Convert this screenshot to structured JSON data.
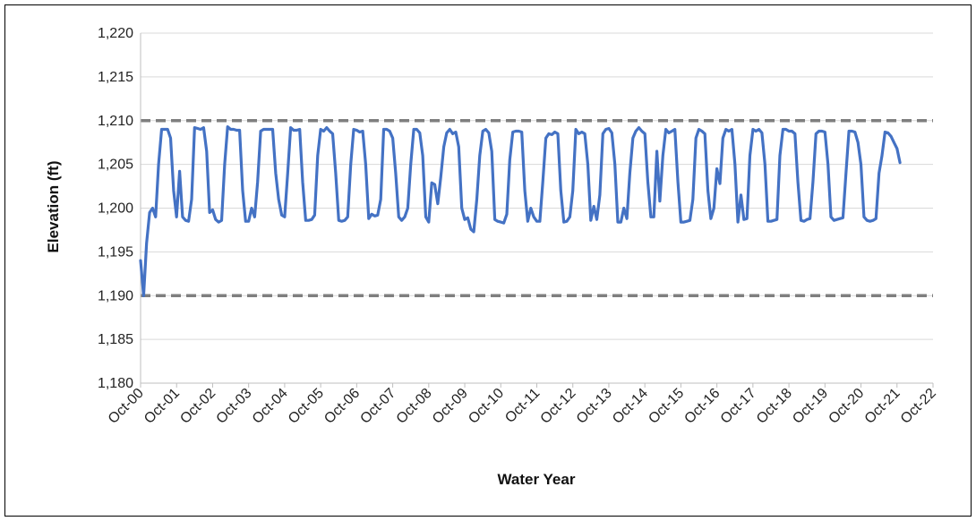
{
  "chart_data": {
    "type": "line",
    "title": "",
    "xlabel": "Water Year",
    "ylabel": "Elevation (ft)",
    "ylim": [
      1180,
      1220
    ],
    "xlim": [
      "2000-10",
      "2022-10"
    ],
    "yticks": [
      1180,
      1185,
      1190,
      1195,
      1200,
      1205,
      1210,
      1215,
      1220
    ],
    "ytick_labels": [
      "1,180",
      "1,185",
      "1,190",
      "1,195",
      "1,200",
      "1,205",
      "1,210",
      "1,215",
      "1,220"
    ],
    "xtick_labels": [
      "Oct-00",
      "Oct-01",
      "Oct-02",
      "Oct-03",
      "Oct-04",
      "Oct-05",
      "Oct-06",
      "Oct-07",
      "Oct-08",
      "Oct-09",
      "Oct-10",
      "Oct-11",
      "Oct-12",
      "Oct-13",
      "Oct-14",
      "Oct-15",
      "Oct-16",
      "Oct-17",
      "Oct-18",
      "Oct-19",
      "Oct-20",
      "Oct-21",
      "Oct-22"
    ],
    "grid": true,
    "legend": "none",
    "reference_lines": [
      {
        "y": 1210,
        "color": "#7f7f7f",
        "style": "dashed"
      },
      {
        "y": 1190,
        "color": "#7f7f7f",
        "style": "dashed"
      }
    ],
    "series": [
      {
        "color": "#4472c4",
        "points": [
          [
            "2000-10",
            1194.0
          ],
          [
            "2000-11",
            1190.0
          ],
          [
            "2000-12",
            1196.0
          ],
          [
            "2001-01",
            1199.5
          ],
          [
            "2001-02",
            1200.0
          ],
          [
            "2001-03",
            1199.0
          ],
          [
            "2001-04",
            1205.0
          ],
          [
            "2001-05",
            1209.0
          ],
          [
            "2001-06",
            1209.0
          ],
          [
            "2001-07",
            1209.0
          ],
          [
            "2001-08",
            1208.0
          ],
          [
            "2001-09",
            1202.0
          ],
          [
            "2001-10",
            1199.0
          ],
          [
            "2001-11",
            1204.2
          ],
          [
            "2001-12",
            1199.0
          ],
          [
            "2002-01",
            1198.6
          ],
          [
            "2002-02",
            1198.5
          ],
          [
            "2002-03",
            1201.0
          ],
          [
            "2002-04",
            1209.2
          ],
          [
            "2002-05",
            1209.1
          ],
          [
            "2002-06",
            1209.0
          ],
          [
            "2002-07",
            1209.2
          ],
          [
            "2002-08",
            1206.5
          ],
          [
            "2002-09",
            1199.5
          ],
          [
            "2002-10",
            1199.8
          ],
          [
            "2002-11",
            1198.7
          ],
          [
            "2002-12",
            1198.4
          ],
          [
            "2003-01",
            1198.6
          ],
          [
            "2003-02",
            1205.0
          ],
          [
            "2003-03",
            1209.3
          ],
          [
            "2003-04",
            1209.0
          ],
          [
            "2003-05",
            1209.0
          ],
          [
            "2003-06",
            1208.9
          ],
          [
            "2003-07",
            1208.9
          ],
          [
            "2003-08",
            1202.0
          ],
          [
            "2003-09",
            1198.5
          ],
          [
            "2003-10",
            1198.5
          ],
          [
            "2003-11",
            1200.0
          ],
          [
            "2003-12",
            1199.0
          ],
          [
            "2004-01",
            1203.0
          ],
          [
            "2004-02",
            1208.8
          ],
          [
            "2004-03",
            1209.0
          ],
          [
            "2004-04",
            1209.0
          ],
          [
            "2004-05",
            1209.0
          ],
          [
            "2004-06",
            1209.0
          ],
          [
            "2004-07",
            1204.0
          ],
          [
            "2004-08",
            1201.0
          ],
          [
            "2004-09",
            1199.2
          ],
          [
            "2004-10",
            1199.0
          ],
          [
            "2004-11",
            1204.0
          ],
          [
            "2004-12",
            1209.2
          ],
          [
            "2005-01",
            1208.9
          ],
          [
            "2005-02",
            1208.9
          ],
          [
            "2005-03",
            1209.0
          ],
          [
            "2005-04",
            1203.0
          ],
          [
            "2005-05",
            1198.6
          ],
          [
            "2005-06",
            1198.6
          ],
          [
            "2005-07",
            1198.7
          ],
          [
            "2005-08",
            1199.2
          ],
          [
            "2005-09",
            1206.0
          ],
          [
            "2005-10",
            1209.0
          ],
          [
            "2005-11",
            1208.8
          ],
          [
            "2005-12",
            1209.2
          ],
          [
            "2006-01",
            1208.8
          ],
          [
            "2006-02",
            1208.5
          ],
          [
            "2006-03",
            1204.0
          ],
          [
            "2006-04",
            1198.6
          ],
          [
            "2006-05",
            1198.5
          ],
          [
            "2006-06",
            1198.6
          ],
          [
            "2006-07",
            1199.0
          ],
          [
            "2006-08",
            1205.0
          ],
          [
            "2006-09",
            1209.0
          ],
          [
            "2006-10",
            1208.9
          ],
          [
            "2006-11",
            1208.7
          ],
          [
            "2006-12",
            1208.8
          ],
          [
            "2007-01",
            1205.0
          ],
          [
            "2007-02",
            1198.8
          ],
          [
            "2007-03",
            1199.3
          ],
          [
            "2007-04",
            1199.1
          ],
          [
            "2007-05",
            1199.2
          ],
          [
            "2007-06",
            1201.0
          ],
          [
            "2007-07",
            1209.0
          ],
          [
            "2007-08",
            1209.0
          ],
          [
            "2007-09",
            1208.8
          ],
          [
            "2007-10",
            1208.0
          ],
          [
            "2007-11",
            1204.0
          ],
          [
            "2007-12",
            1199.0
          ],
          [
            "2008-01",
            1198.6
          ],
          [
            "2008-02",
            1199.0
          ],
          [
            "2008-03",
            1200.0
          ],
          [
            "2008-04",
            1205.0
          ],
          [
            "2008-05",
            1209.0
          ],
          [
            "2008-06",
            1209.0
          ],
          [
            "2008-07",
            1208.6
          ],
          [
            "2008-08",
            1206.0
          ],
          [
            "2008-09",
            1199.0
          ],
          [
            "2008-10",
            1198.4
          ],
          [
            "2008-11",
            1202.9
          ],
          [
            "2008-12",
            1202.7
          ],
          [
            "2009-01",
            1200.5
          ],
          [
            "2009-02",
            1203.5
          ],
          [
            "2009-03",
            1207.0
          ],
          [
            "2009-04",
            1208.6
          ],
          [
            "2009-05",
            1209.0
          ],
          [
            "2009-06",
            1208.5
          ],
          [
            "2009-07",
            1208.7
          ],
          [
            "2009-08",
            1207.0
          ],
          [
            "2009-09",
            1200.0
          ],
          [
            "2009-10",
            1198.7
          ],
          [
            "2009-11",
            1198.9
          ],
          [
            "2009-12",
            1197.6
          ],
          [
            "2010-01",
            1197.3
          ],
          [
            "2010-02",
            1201.0
          ],
          [
            "2010-03",
            1206.0
          ],
          [
            "2010-04",
            1208.8
          ],
          [
            "2010-05",
            1209.0
          ],
          [
            "2010-06",
            1208.6
          ],
          [
            "2010-07",
            1206.5
          ],
          [
            "2010-08",
            1198.7
          ],
          [
            "2010-09",
            1198.5
          ],
          [
            "2010-10",
            1198.4
          ],
          [
            "2010-11",
            1198.3
          ],
          [
            "2010-12",
            1199.3
          ],
          [
            "2011-01",
            1205.5
          ],
          [
            "2011-02",
            1208.7
          ],
          [
            "2011-03",
            1208.8
          ],
          [
            "2011-04",
            1208.8
          ],
          [
            "2011-05",
            1208.7
          ],
          [
            "2011-06",
            1202.0
          ],
          [
            "2011-07",
            1198.5
          ],
          [
            "2011-08",
            1200.0
          ],
          [
            "2011-09",
            1199.0
          ],
          [
            "2011-10",
            1198.5
          ],
          [
            "2011-11",
            1198.5
          ],
          [
            "2011-12",
            1203.0
          ],
          [
            "2012-01",
            1208.0
          ],
          [
            "2012-02",
            1208.5
          ],
          [
            "2012-03",
            1208.4
          ],
          [
            "2012-04",
            1208.7
          ],
          [
            "2012-05",
            1208.5
          ],
          [
            "2012-06",
            1202.0
          ],
          [
            "2012-07",
            1198.4
          ],
          [
            "2012-08",
            1198.5
          ],
          [
            "2012-09",
            1199.0
          ],
          [
            "2012-10",
            1202.0
          ],
          [
            "2012-11",
            1209.0
          ],
          [
            "2012-12",
            1208.5
          ],
          [
            "2013-01",
            1208.7
          ],
          [
            "2013-02",
            1208.5
          ],
          [
            "2013-03",
            1205.0
          ],
          [
            "2013-04",
            1198.6
          ],
          [
            "2013-05",
            1200.2
          ],
          [
            "2013-06",
            1198.7
          ],
          [
            "2013-07",
            1201.5
          ],
          [
            "2013-08",
            1208.5
          ],
          [
            "2013-09",
            1209.0
          ],
          [
            "2013-10",
            1209.1
          ],
          [
            "2013-11",
            1208.6
          ],
          [
            "2013-12",
            1205.0
          ],
          [
            "2014-01",
            1198.4
          ],
          [
            "2014-02",
            1198.4
          ],
          [
            "2014-03",
            1200.0
          ],
          [
            "2014-04",
            1198.8
          ],
          [
            "2014-05",
            1204.0
          ],
          [
            "2014-06",
            1208.0
          ],
          [
            "2014-07",
            1208.8
          ],
          [
            "2014-08",
            1209.2
          ],
          [
            "2014-09",
            1208.8
          ],
          [
            "2014-10",
            1208.5
          ],
          [
            "2014-11",
            1203.0
          ],
          [
            "2014-12",
            1199.0
          ],
          [
            "2015-01",
            1199.0
          ],
          [
            "2015-02",
            1206.5
          ],
          [
            "2015-03",
            1200.8
          ],
          [
            "2015-04",
            1206.0
          ],
          [
            "2015-05",
            1209.0
          ],
          [
            "2015-06",
            1208.6
          ],
          [
            "2015-07",
            1208.8
          ],
          [
            "2015-08",
            1209.0
          ],
          [
            "2015-09",
            1203.0
          ],
          [
            "2015-10",
            1198.4
          ],
          [
            "2015-11",
            1198.4
          ],
          [
            "2015-12",
            1198.5
          ],
          [
            "2016-01",
            1198.6
          ],
          [
            "2016-02",
            1201.0
          ],
          [
            "2016-03",
            1208.0
          ],
          [
            "2016-04",
            1209.0
          ],
          [
            "2016-05",
            1208.8
          ],
          [
            "2016-06",
            1208.5
          ],
          [
            "2016-07",
            1202.0
          ],
          [
            "2016-08",
            1198.8
          ],
          [
            "2016-09",
            1200.0
          ],
          [
            "2016-10",
            1204.5
          ],
          [
            "2016-11",
            1202.8
          ],
          [
            "2016-12",
            1208.0
          ],
          [
            "2017-01",
            1209.0
          ],
          [
            "2017-02",
            1208.8
          ],
          [
            "2017-03",
            1209.0
          ],
          [
            "2017-04",
            1205.0
          ],
          [
            "2017-05",
            1198.4
          ],
          [
            "2017-06",
            1201.5
          ],
          [
            "2017-07",
            1198.7
          ],
          [
            "2017-08",
            1198.8
          ],
          [
            "2017-09",
            1206.0
          ],
          [
            "2017-10",
            1209.0
          ],
          [
            "2017-11",
            1208.8
          ],
          [
            "2017-12",
            1209.0
          ],
          [
            "2018-01",
            1208.6
          ],
          [
            "2018-02",
            1205.0
          ],
          [
            "2018-03",
            1198.5
          ],
          [
            "2018-04",
            1198.5
          ],
          [
            "2018-05",
            1198.6
          ],
          [
            "2018-06",
            1198.7
          ],
          [
            "2018-07",
            1206.0
          ],
          [
            "2018-08",
            1209.0
          ],
          [
            "2018-09",
            1209.0
          ],
          [
            "2018-10",
            1208.8
          ],
          [
            "2018-11",
            1208.8
          ],
          [
            "2018-12",
            1208.5
          ],
          [
            "2019-01",
            1203.0
          ],
          [
            "2019-02",
            1198.6
          ],
          [
            "2019-03",
            1198.5
          ],
          [
            "2019-04",
            1198.7
          ],
          [
            "2019-05",
            1198.8
          ],
          [
            "2019-06",
            1203.0
          ],
          [
            "2019-07",
            1208.5
          ],
          [
            "2019-08",
            1208.8
          ],
          [
            "2019-09",
            1208.8
          ],
          [
            "2019-10",
            1208.7
          ],
          [
            "2019-11",
            1205.0
          ],
          [
            "2019-12",
            1199.0
          ],
          [
            "2020-01",
            1198.6
          ],
          [
            "2020-02",
            1198.7
          ],
          [
            "2020-03",
            1198.8
          ],
          [
            "2020-04",
            1198.9
          ],
          [
            "2020-05",
            1204.0
          ],
          [
            "2020-06",
            1208.8
          ],
          [
            "2020-07",
            1208.8
          ],
          [
            "2020-08",
            1208.7
          ],
          [
            "2020-09",
            1207.5
          ],
          [
            "2020-10",
            1205.0
          ],
          [
            "2020-11",
            1199.0
          ],
          [
            "2020-12",
            1198.6
          ],
          [
            "2021-01",
            1198.5
          ],
          [
            "2021-02",
            1198.6
          ],
          [
            "2021-03",
            1198.8
          ],
          [
            "2021-04",
            1204.0
          ],
          [
            "2021-05",
            1206.0
          ],
          [
            "2021-06",
            1208.7
          ],
          [
            "2021-07",
            1208.6
          ],
          [
            "2021-08",
            1208.2
          ],
          [
            "2021-09",
            1207.5
          ],
          [
            "2021-10",
            1206.8
          ],
          [
            "2021-11",
            1205.2
          ]
        ]
      }
    ]
  }
}
